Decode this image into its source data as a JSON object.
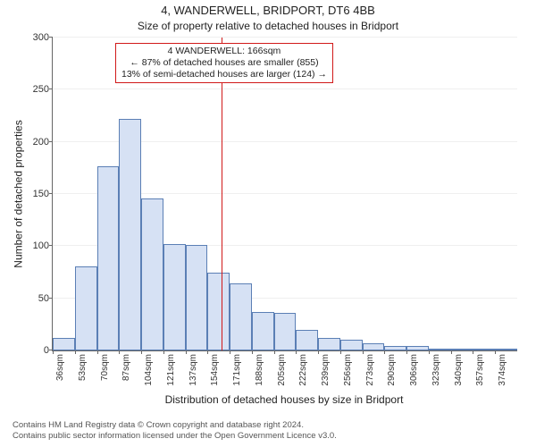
{
  "chart": {
    "type": "histogram",
    "title_main": "4, WANDERWELL, BRIDPORT, DT6 4BB",
    "title_sub": "Size of property relative to detached houses in Bridport",
    "y_axis_label": "Number of detached properties",
    "x_axis_label": "Distribution of detached houses by size in Bridport",
    "title_fontsize": 13,
    "subtitle_fontsize": 12,
    "axis_label_fontsize": 12,
    "tick_fontsize": 10,
    "background_color": "#ffffff",
    "grid_color": "#bfbfbf",
    "axis_color": "#666666",
    "bar_fill": "#d6e1f4",
    "bar_stroke": "#5b7fb5",
    "marker_color": "#d11919",
    "marker_x_value": 166,
    "annotation": {
      "line1": "4 WANDERWELL: 166sqm",
      "line2": "← 87% of detached houses are smaller (855)",
      "line3": "13% of semi-detached houses are larger (124) →",
      "border_color": "#d11919"
    },
    "ylim": [
      0,
      300
    ],
    "yticks": [
      0,
      50,
      100,
      150,
      200,
      250,
      300
    ],
    "x_bin_width": 17,
    "x_start": 36,
    "x_tick_labels": [
      "36sqm",
      "53sqm",
      "70sqm",
      "87sqm",
      "104sqm",
      "121sqm",
      "137sqm",
      "154sqm",
      "171sqm",
      "188sqm",
      "205sqm",
      "222sqm",
      "239sqm",
      "256sqm",
      "273sqm",
      "290sqm",
      "306sqm",
      "323sqm",
      "340sqm",
      "357sqm",
      "374sqm"
    ],
    "values": [
      12,
      81,
      177,
      222,
      146,
      102,
      101,
      75,
      64,
      37,
      36,
      20,
      12,
      10,
      7,
      4,
      4,
      2,
      1,
      2,
      1
    ],
    "footer_line1": "Contains HM Land Registry data © Crown copyright and database right 2024.",
    "footer_line2": "Contains public sector information licensed under the Open Government Licence v3.0."
  }
}
